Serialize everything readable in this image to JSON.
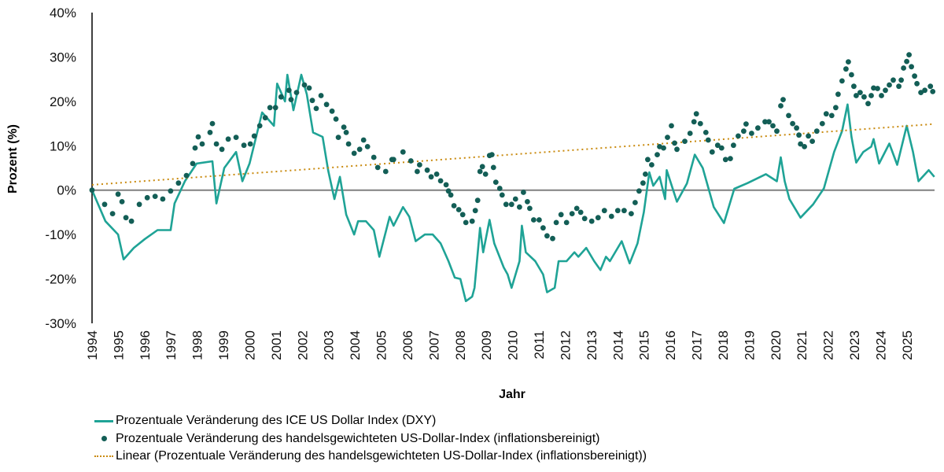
{
  "chart_data": {
    "type": "line",
    "xlabel": "Jahr",
    "ylabel": "Prozent (%)",
    "ylim": [
      -30,
      40
    ],
    "xlim": [
      1994,
      2026.05
    ],
    "yticks": [
      "-30%",
      "-20%",
      "-10%",
      "0%",
      "10%",
      "20%",
      "30%",
      "40%"
    ],
    "ytick_values": [
      -30,
      -20,
      -10,
      0,
      10,
      20,
      30,
      40
    ],
    "xticks": [
      "1994",
      "1995",
      "1996",
      "1997",
      "1998",
      "1999",
      "2000",
      "2001",
      "2002",
      "2003",
      "2004",
      "2005",
      "2006",
      "2007",
      "2008",
      "2009",
      "2010",
      "2011",
      "2012",
      "2013",
      "2014",
      "2015",
      "2016",
      "2017",
      "2018",
      "2019",
      "2020",
      "2021",
      "2022",
      "2023",
      "2024",
      "2025"
    ],
    "grid": false,
    "legend_position": "bottom-left",
    "colors": {
      "dxy": "#1fa396",
      "trade_weighted": "#135e56",
      "trend": "#c98a0e",
      "zero_line": "#808080"
    },
    "series": [
      {
        "name": "Prozentuale Veränderung des ICE US Dollar Index (DXY)",
        "style": "line",
        "x": [
          1994.0,
          1994.51,
          1994.99,
          1995.2,
          1995.59,
          1996.01,
          1996.49,
          1996.99,
          1997.14,
          1997.53,
          1997.98,
          1998.58,
          1998.73,
          1999.03,
          1999.48,
          1999.72,
          1999.99,
          2000.47,
          2000.92,
          2001.04,
          2001.34,
          2001.43,
          2001.66,
          2001.96,
          2002.17,
          2002.41,
          2002.77,
          2002.98,
          2003.22,
          2003.43,
          2003.67,
          2003.97,
          2004.12,
          2004.42,
          2004.72,
          2004.93,
          2005.32,
          2005.47,
          2005.83,
          2006.07,
          2006.31,
          2006.66,
          2006.96,
          2007.26,
          2007.56,
          2007.8,
          2008.01,
          2008.22,
          2008.46,
          2008.55,
          2008.76,
          2008.88,
          2009.12,
          2009.3,
          2009.66,
          2009.81,
          2009.96,
          2010.26,
          2010.35,
          2010.5,
          2010.86,
          2011.16,
          2011.31,
          2011.6,
          2011.75,
          2012.05,
          2012.35,
          2012.5,
          2012.8,
          2013.1,
          2013.34,
          2013.55,
          2013.7,
          2014.15,
          2014.3,
          2014.45,
          2014.75,
          2014.99,
          2015.2,
          2015.35,
          2015.59,
          2015.8,
          2015.86,
          2016.25,
          2016.63,
          2016.93,
          2017.23,
          2017.65,
          2018.04,
          2018.43,
          2018.94,
          2019.63,
          2020.05,
          2020.2,
          2020.35,
          2020.53,
          2020.95,
          2021.43,
          2021.84,
          2022.23,
          2022.53,
          2022.74,
          2022.89,
          2023.07,
          2023.34,
          2023.64,
          2023.73,
          2023.94,
          2024.33,
          2024.63,
          2024.99,
          2025.23,
          2025.44,
          2025.83,
          2026.04
        ],
        "y": [
          0,
          -7,
          -10,
          -15.6,
          -13,
          -11,
          -9,
          -9,
          -3,
          2,
          6,
          6.5,
          -3,
          5,
          8.6,
          2,
          6,
          17.5,
          14.5,
          24,
          20,
          26,
          18,
          26,
          21.6,
          13,
          12,
          4.5,
          -2,
          3,
          -5.5,
          -10,
          -7,
          -7,
          -9,
          -15,
          -6,
          -8,
          -3.8,
          -6,
          -11.5,
          -10,
          -10,
          -12,
          -16,
          -19.7,
          -20,
          -25,
          -24,
          -22,
          -8.5,
          -14,
          -6.7,
          -12,
          -17.4,
          -19,
          -22,
          -16,
          -8,
          -14,
          -16,
          -19,
          -23,
          -22,
          -16,
          -16,
          -14,
          -15,
          -13,
          -16,
          -18,
          -15,
          -16,
          -11.5,
          -14,
          -16.5,
          -12,
          -5,
          4,
          1,
          3,
          -2,
          4.5,
          -2.6,
          1.5,
          8,
          5,
          -3.8,
          -7.4,
          0.3,
          1.6,
          3.6,
          2,
          7.4,
          2,
          -2,
          -6.2,
          -3.2,
          0.4,
          8.6,
          13.3,
          19.3,
          12,
          6.2,
          8.6,
          9.8,
          11.5,
          6,
          10.5,
          5.7,
          14.5,
          8.6,
          2,
          4.5,
          3
        ]
      },
      {
        "name": "Prozentuale Veränderung des handelsgewichteten US-Dollar-Index (inflationsbereinigt)",
        "style": "markers",
        "x": [
          1994.0,
          1994.48,
          1994.78,
          1994.99,
          1995.14,
          1995.29,
          1995.5,
          1995.8,
          1996.1,
          1996.4,
          1996.69,
          1996.99,
          1997.29,
          1997.59,
          1997.83,
          1997.92,
          1998.04,
          1998.19,
          1998.49,
          1998.58,
          1998.73,
          1998.94,
          1999.18,
          1999.48,
          1999.78,
          2000.02,
          2000.17,
          2000.38,
          2000.59,
          2000.77,
          2000.98,
          2001.19,
          2001.49,
          2001.57,
          2001.78,
          2002.08,
          2002.26,
          2002.38,
          2002.53,
          2002.71,
          2002.92,
          2003.13,
          2003.28,
          2003.37,
          2003.58,
          2003.67,
          2003.76,
          2003.97,
          2004.18,
          2004.33,
          2004.48,
          2004.72,
          2004.87,
          2005.17,
          2005.41,
          2005.47,
          2005.83,
          2006.13,
          2006.37,
          2006.46,
          2006.75,
          2006.9,
          2007.11,
          2007.26,
          2007.47,
          2007.56,
          2007.65,
          2007.77,
          2007.95,
          2008.1,
          2008.22,
          2008.46,
          2008.58,
          2008.67,
          2008.76,
          2008.85,
          2008.97,
          2009.12,
          2009.21,
          2009.27,
          2009.36,
          2009.51,
          2009.6,
          2009.75,
          2009.96,
          2010.11,
          2010.26,
          2010.41,
          2010.56,
          2010.65,
          2010.8,
          2011.01,
          2011.16,
          2011.31,
          2011.52,
          2011.66,
          2011.84,
          2012.05,
          2012.26,
          2012.44,
          2012.59,
          2012.74,
          2013.01,
          2013.25,
          2013.49,
          2013.76,
          2014.0,
          2014.24,
          2014.51,
          2014.66,
          2014.81,
          2014.96,
          2015.05,
          2015.14,
          2015.29,
          2015.5,
          2015.59,
          2015.74,
          2015.89,
          2016.04,
          2016.16,
          2016.25,
          2016.55,
          2016.75,
          2016.9,
          2016.99,
          2017.14,
          2017.35,
          2017.44,
          2017.59,
          2017.8,
          2017.95,
          2018.1,
          2018.28,
          2018.4,
          2018.58,
          2018.79,
          2018.88,
          2019.09,
          2019.33,
          2019.6,
          2019.75,
          2019.9,
          2020.05,
          2020.2,
          2020.29,
          2020.5,
          2020.65,
          2020.8,
          2020.89,
          2020.95,
          2021.1,
          2021.25,
          2021.4,
          2021.57,
          2021.78,
          2021.93,
          2022.14,
          2022.29,
          2022.38,
          2022.53,
          2022.68,
          2022.77,
          2022.89,
          2022.98,
          2023.07,
          2023.22,
          2023.37,
          2023.52,
          2023.64,
          2023.73,
          2023.88,
          2024.03,
          2024.18,
          2024.33,
          2024.48,
          2024.69,
          2024.78,
          2024.87,
          2024.99,
          2025.08,
          2025.17,
          2025.29,
          2025.38,
          2025.53,
          2025.68,
          2025.89,
          2025.98
        ],
        "y": [
          0,
          -3.2,
          -5.3,
          -0.9,
          -2.6,
          -6.2,
          -7,
          -3.2,
          -1.7,
          -1.4,
          -2,
          -0.2,
          1.6,
          3.3,
          6,
          9.5,
          12,
          10.4,
          13,
          15,
          10.4,
          9.2,
          11.5,
          11.9,
          10.1,
          10.4,
          12.2,
          14.5,
          16.3,
          18.6,
          18.6,
          21,
          22.5,
          20.4,
          22,
          23.7,
          23,
          20.2,
          18.4,
          21.3,
          19.3,
          17.8,
          16,
          11.9,
          14.2,
          13,
          10.4,
          8.3,
          9.2,
          11.3,
          9.8,
          7.4,
          5.1,
          4.2,
          6.9,
          6.9,
          8.6,
          6.6,
          4.2,
          5.7,
          4.5,
          3,
          3.6,
          2.1,
          1.2,
          -0.2,
          -1.1,
          -3.5,
          -4.4,
          -5.5,
          -7.3,
          -7,
          -4.6,
          -2.3,
          4.2,
          5.3,
          3.6,
          7.8,
          8,
          5.1,
          1.8,
          0.4,
          -1.1,
          -3.2,
          -3.2,
          -2,
          -3.8,
          -0.5,
          -2.6,
          -4.1,
          -6.7,
          -6.7,
          -8.5,
          -10.3,
          -10.9,
          -7.3,
          -5.5,
          -7.3,
          -5.3,
          -4.1,
          -5,
          -6.4,
          -7,
          -6.2,
          -4.6,
          -5.9,
          -4.6,
          -4.6,
          -5.3,
          -2.8,
          -0.2,
          1.6,
          3.6,
          6.9,
          5.7,
          8,
          9.8,
          9.5,
          11.9,
          14.5,
          10.6,
          9.2,
          11,
          12.8,
          15.4,
          17.2,
          15,
          13,
          11.3,
          8.6,
          10.1,
          9.5,
          6.9,
          7.1,
          10.1,
          12.2,
          13.3,
          14.9,
          12.8,
          14,
          15.4,
          15.4,
          14.5,
          13.3,
          19,
          20.4,
          16.8,
          15,
          14,
          12.4,
          10.4,
          9.8,
          12.2,
          11,
          13.3,
          15,
          17.2,
          16.8,
          18.6,
          21.6,
          24.6,
          27.3,
          28.9,
          26,
          23.4,
          21.3,
          22,
          21,
          19.5,
          21.3,
          23,
          22.9,
          21.3,
          22.5,
          23.7,
          24.8,
          23.4,
          24.8,
          27.5,
          29,
          30.5,
          27.8,
          25.7,
          24,
          22,
          22.5,
          23.4,
          22.2
        ]
      },
      {
        "name": "Linear (Prozentuale Veränderung des handelsgewichteten US-Dollar-Index (inflationsbereinigt))",
        "style": "dotted-trendline",
        "x": [
          1994.0,
          2026.05
        ],
        "y": [
          1.2,
          14.9
        ]
      }
    ]
  }
}
